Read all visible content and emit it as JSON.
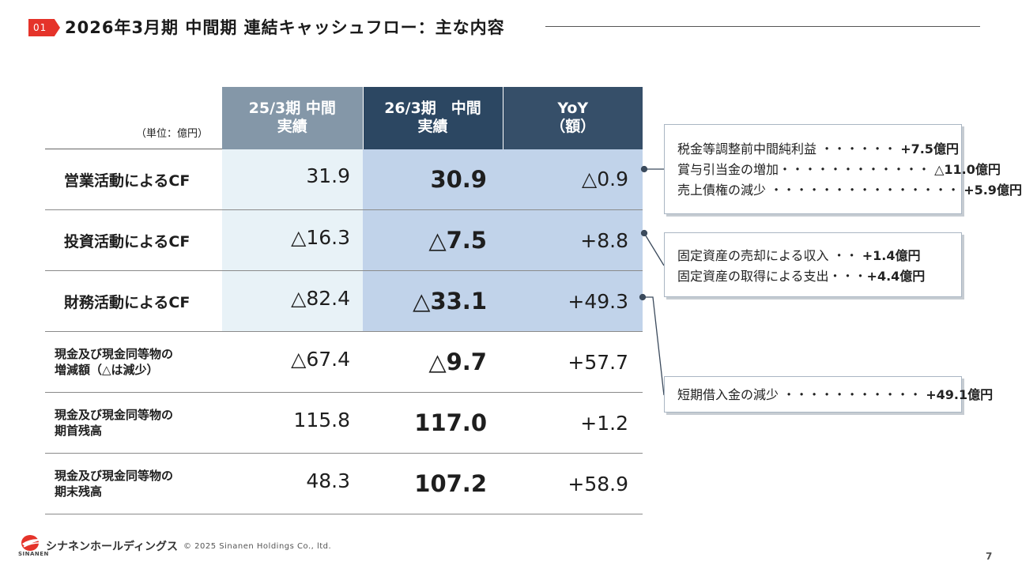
{
  "header": {
    "section_number": "01",
    "title": "2026年3月期 中間期 連結キャッシュフロー：主な内容"
  },
  "table": {
    "unit": "（単位：億円）",
    "columns": [
      {
        "line1": "25/3期 中間",
        "line2": "実績"
      },
      {
        "line1": "26/3期　中間",
        "line2": "実績"
      },
      {
        "line1": "YoY",
        "line2": "（額）"
      }
    ],
    "rows": [
      {
        "label1": "営業活動によるCF",
        "label2": "",
        "prev": "31.9",
        "cur": "30.9",
        "yoy": "△0.9"
      },
      {
        "label1": "投資活動によるCF",
        "label2": "",
        "prev": "△16.3",
        "cur": "△7.5",
        "yoy": "+8.8"
      },
      {
        "label1": "財務活動によるCF",
        "label2": "",
        "prev": "△82.4",
        "cur": "△33.1",
        "yoy": "+49.3"
      },
      {
        "label1": "現金及び現金同等物の",
        "label2": "増減額（△は減少）",
        "prev": "△67.4",
        "cur": "△9.7",
        "yoy": "+57.7"
      },
      {
        "label1": "現金及び現金同等物の",
        "label2": "期首残高",
        "prev": "115.8",
        "cur": "117.0",
        "yoy": "+1.2"
      },
      {
        "label1": "現金及び現金同等物の",
        "label2": "期末残高",
        "prev": "48.3",
        "cur": "107.2",
        "yoy": "+58.9"
      }
    ]
  },
  "notes": [
    {
      "lines": [
        {
          "text": "税金等調整前中間純利益 ・・・・・・ ",
          "amount": "+7.5億円"
        },
        {
          "text": "賞与引当金の増加・・・・・・・・・・・・ ",
          "amount": "△11.0億円"
        },
        {
          "text": "売上債権の減少 ・・・・・・・・・・・・・・・ ",
          "amount": "+5.9億円"
        }
      ]
    },
    {
      "lines": [
        {
          "text": "固定資産の売却による収入 ・・ ",
          "amount": "+1.4億円"
        },
        {
          "text": "固定資産の取得による支出・・・",
          "amount": "+4.4億円"
        }
      ]
    },
    {
      "lines": [
        {
          "text": "短期借入金の減少 ・・・・・・・・・・・ ",
          "amount": "+49.1億円"
        }
      ]
    }
  ],
  "footer": {
    "company_name": "シナネンホールディングス",
    "company_sub": "SINANEN",
    "copyright": "© 2025 Sinanen Holdings Co., ltd.",
    "page_number": "7"
  },
  "colors": {
    "accent_red": "#e5332a",
    "header_prev": "#8497a8",
    "header_cur": "#2c4762",
    "cell_prev": "#e8f2f7",
    "cell_cur": "#c1d3ea",
    "connector": "#3b4a5c"
  }
}
